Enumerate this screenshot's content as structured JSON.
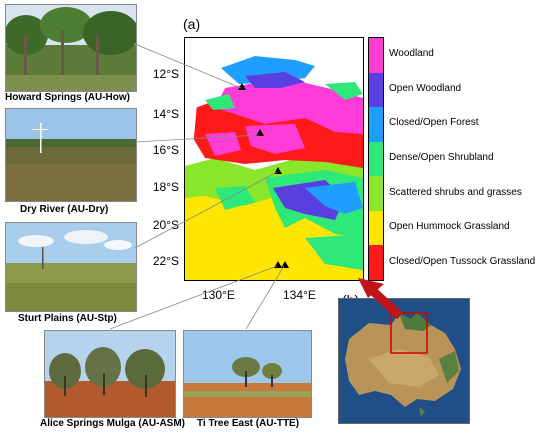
{
  "panel_a_label": "(a)",
  "panel_b_label": "(b)",
  "latitude_labels": [
    "12°S",
    "14°S",
    "16°S",
    "18°S",
    "20°S",
    "22°S"
  ],
  "longitude_labels": [
    "130°E",
    "134°E"
  ],
  "legend": [
    {
      "label": "Woodland",
      "color": "#ff3dd6"
    },
    {
      "label": "Open Woodland",
      "color": "#5a3fe0"
    },
    {
      "label": "Closed/Open Forest",
      "color": "#1e9fff"
    },
    {
      "label": "Dense/Open Shrubland",
      "color": "#2ee87a"
    },
    {
      "label": "Scattered shrubs and grasses",
      "color": "#8ae62a"
    },
    {
      "label": "Open Hummock Grassland",
      "color": "#ffe600"
    },
    {
      "label": "Closed/Open Tussock Grassland",
      "color": "#ff1a1a"
    }
  ],
  "sites": [
    {
      "caption": "Howard Springs (AU-How)"
    },
    {
      "caption": "Dry River (AU-Dry)"
    },
    {
      "caption": "Sturt Plains (AU-Stp)"
    },
    {
      "caption": "Alice Springs Mulga (AU-ASM)"
    },
    {
      "caption": "Ti Tree East (AU-TTE)"
    }
  ],
  "colors": {
    "arrow": "#c0141a",
    "site_marker": "#000000",
    "inset_box": "#d00000"
  }
}
